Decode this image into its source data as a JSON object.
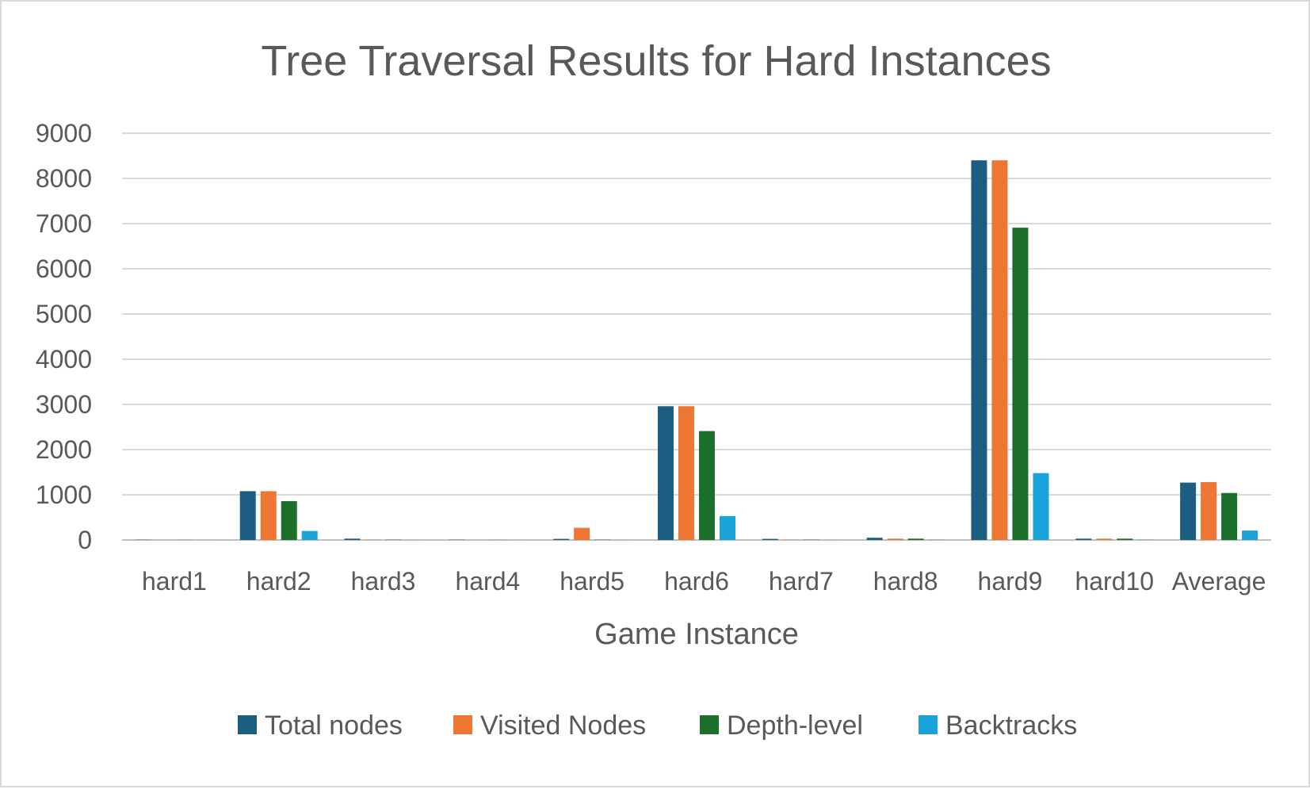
{
  "chart_data": {
    "type": "bar",
    "title": "Tree Traversal Results for Hard Instances",
    "xlabel": "Game Instance",
    "ylabel": "",
    "ylim": [
      0,
      9000
    ],
    "yticks": [
      "0",
      "1000",
      "2000",
      "3000",
      "4000",
      "5000",
      "6000",
      "7000",
      "8000",
      "9000"
    ],
    "grid": "horizontal",
    "legend_position": "bottom",
    "categories": [
      "hard1",
      "hard2",
      "hard3",
      "hard4",
      "hard5",
      "hard6",
      "hard7",
      "hard8",
      "hard9",
      "hard10",
      "Average"
    ],
    "series": [
      {
        "name": "Total nodes",
        "color": "#1b5e82",
        "values": [
          5,
          1080,
          30,
          5,
          25,
          2960,
          25,
          50,
          8400,
          30,
          1270
        ]
      },
      {
        "name": "Visited Nodes",
        "color": "#ed7633",
        "values": [
          2,
          1080,
          5,
          2,
          270,
          2960,
          5,
          30,
          8400,
          30,
          1280
        ]
      },
      {
        "name": "Depth-level",
        "color": "#1c6e2b",
        "values": [
          2,
          860,
          5,
          2,
          5,
          2410,
          5,
          30,
          6910,
          30,
          1040
        ]
      },
      {
        "name": "Backtracks",
        "color": "#1aa2db",
        "values": [
          1,
          200,
          2,
          1,
          2,
          530,
          2,
          5,
          1480,
          5,
          210
        ]
      }
    ]
  }
}
